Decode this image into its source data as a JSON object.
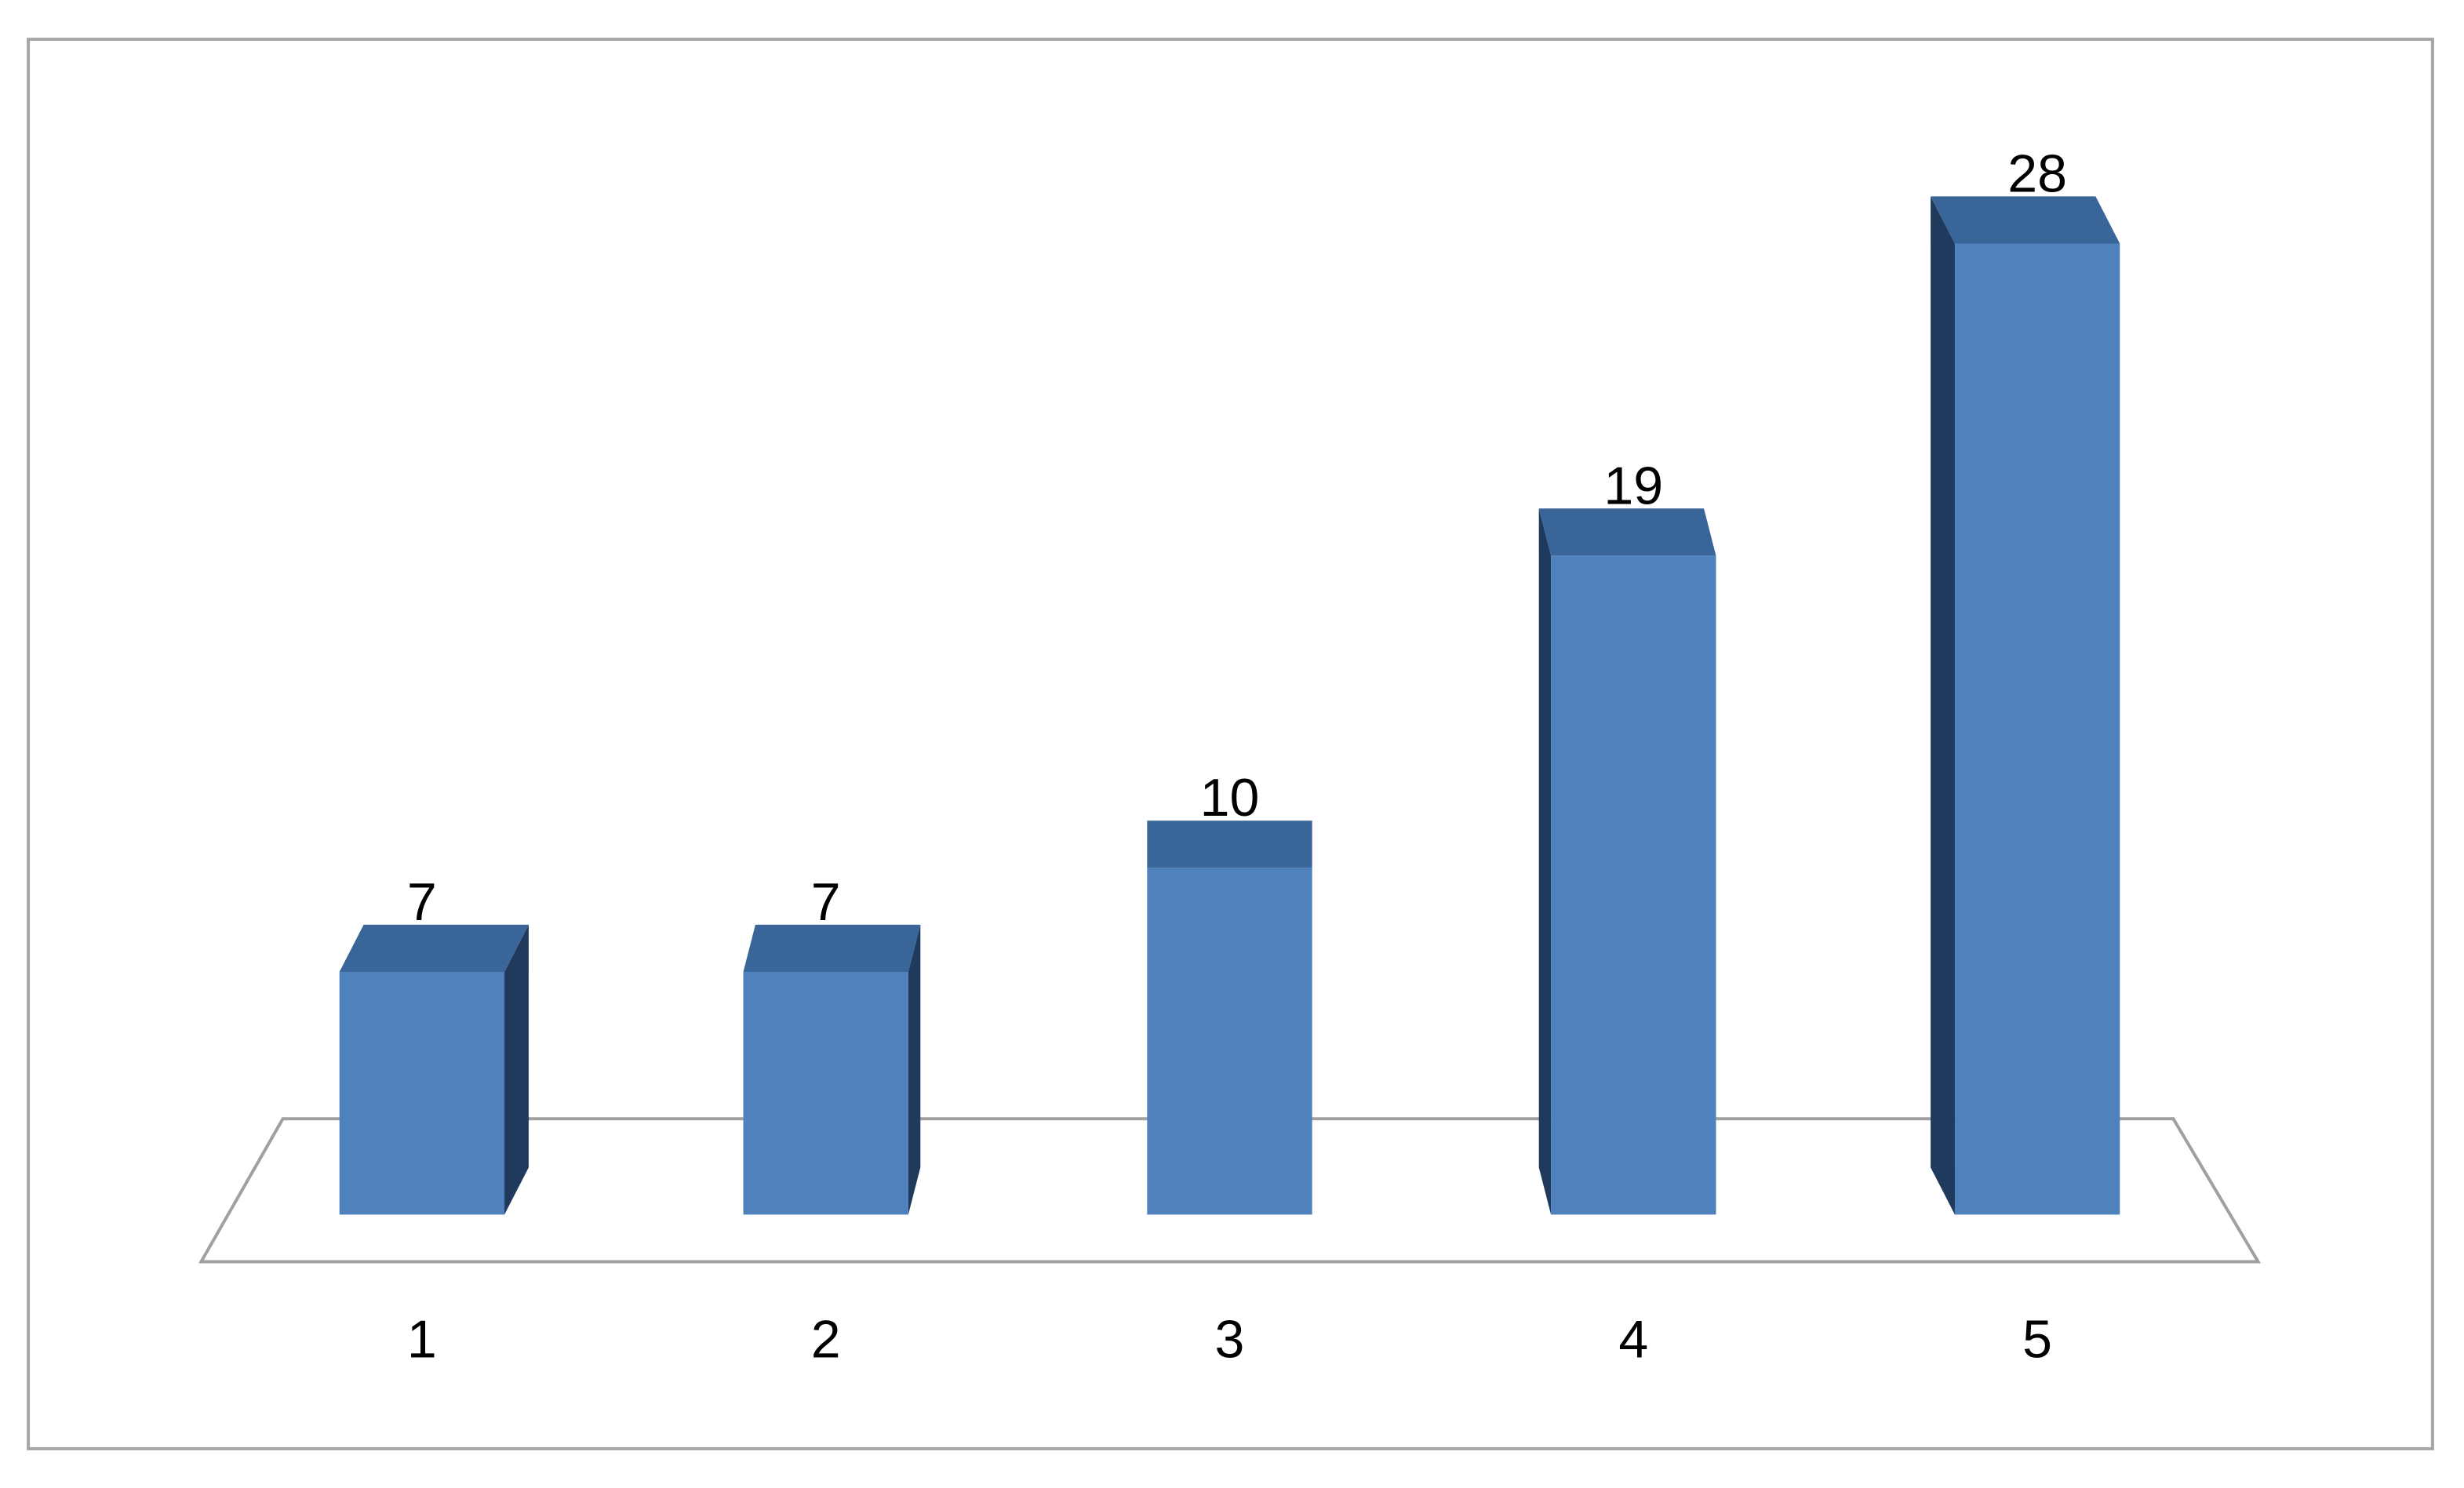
{
  "chart_data": {
    "type": "bar",
    "categories": [
      "1",
      "2",
      "3",
      "4",
      "5"
    ],
    "values": [
      7,
      7,
      10,
      19,
      28
    ],
    "color": "#4f81bd",
    "top_color": "#3a6598",
    "side_color": "#1f3a5c"
  }
}
